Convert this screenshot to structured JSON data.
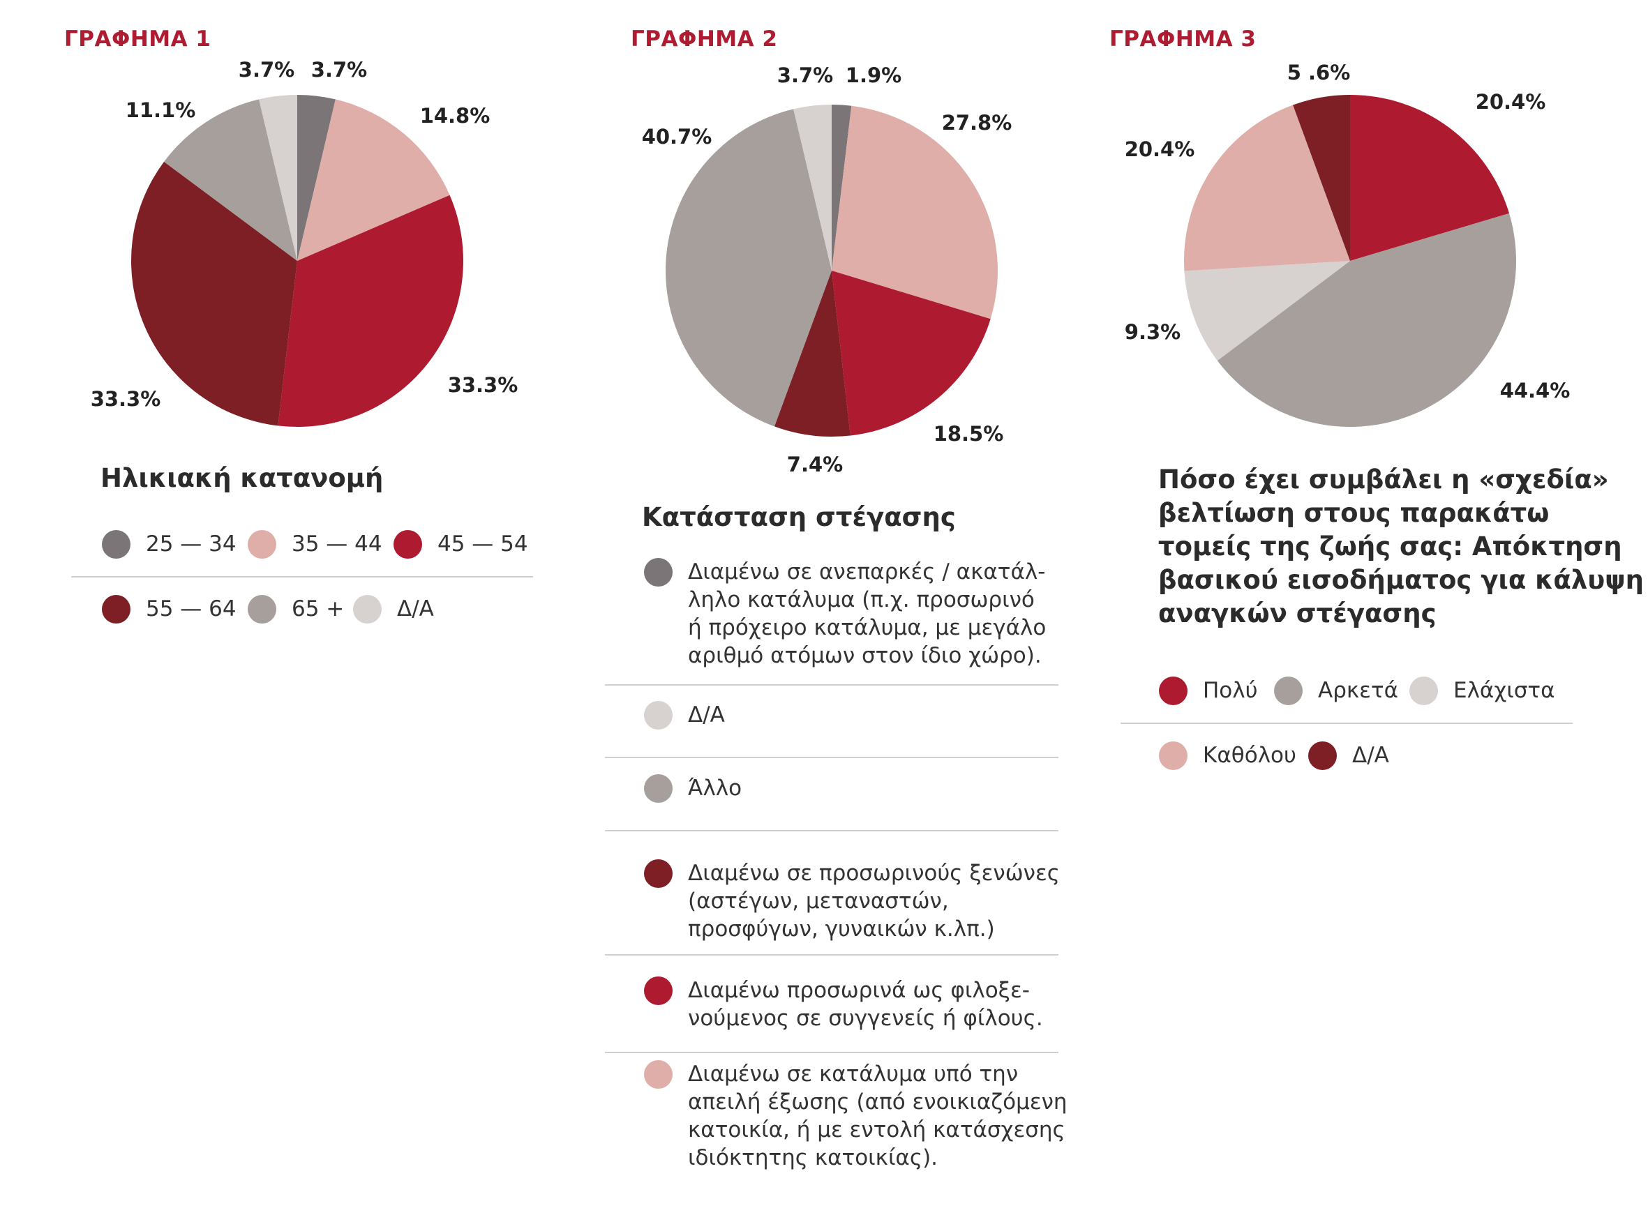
{
  "colors": {
    "dark_grey": "#7b7577",
    "pale_pink": "#e0aea8",
    "red": "#ae1a30",
    "dark_red": "#7e1f25",
    "warm_grey": "#a69f9b",
    "light_grey": "#d7d1d0",
    "label_red": "#ae1c31"
  },
  "chart_data": [
    {
      "type": "pie",
      "figure_label": "ΓΡΑΦΗΜΑ 1",
      "title": "Ηλικιακή κατανομή",
      "slices": [
        {
          "label": "25 — 34",
          "value": 3.7,
          "value_label": "3.7%",
          "color": "#7b7577"
        },
        {
          "label": "35 — 44",
          "value": 14.8,
          "value_label": "14.8%",
          "color": "#e0aea8"
        },
        {
          "label": "45 — 54",
          "value": 33.3,
          "value_label": "33.3%",
          "color": "#ae1a30"
        },
        {
          "label": "55 — 64",
          "value": 33.3,
          "value_label": "33.3%",
          "color": "#7e1f25"
        },
        {
          "label": "65 +",
          "value": 11.1,
          "value_label": "11.1%",
          "color": "#a69f9b"
        },
        {
          "label": "Δ/Α",
          "value": 3.7,
          "value_label": "3.7%",
          "color": "#d7d1d0"
        }
      ]
    },
    {
      "type": "pie",
      "figure_label": "ΓΡΑΦΗΜΑ 2",
      "title": "Κατάσταση στέγασης",
      "slices": [
        {
          "label": "Διαμένω σε ανεπαρκές / ακατάλληλο κατάλυμα (π.χ. προσωρινό ή πρόχειρο κατάλυμα, με μεγάλο αριθμό ατόμων στον ίδιο χώρο).",
          "value": 1.9,
          "value_label": "1.9%",
          "color": "#7b7577"
        },
        {
          "label": "Διαμένω σε κατάλυμα υπό την απειλή έξωσης (από ενοικιαζόμενη κατοικία, ή με εντολή κατάσχεσης ιδιόκτητης κατοικίας).",
          "value": 27.8,
          "value_label": "27.8%",
          "color": "#e0aea8"
        },
        {
          "label": "Διαμένω προσωρινά ως φιλοξενούμενος σε συγγενείς ή φίλους.",
          "value": 18.5,
          "value_label": "18.5%",
          "color": "#ae1a30"
        },
        {
          "label": "Διαμένω σε προσωρινούς ξενώνες (αστέγων, μεταναστών, προσφύγων, γυναικών κ.λπ.)",
          "value": 7.4,
          "value_label": "7.4%",
          "color": "#7e1f25"
        },
        {
          "label": "Άλλο",
          "value": 40.7,
          "value_label": "40.7%",
          "color": "#a69f9b"
        },
        {
          "label": "Δ/Α",
          "value": 3.7,
          "value_label": "3.7%",
          "color": "#d7d1d0"
        }
      ],
      "legend": [
        {
          "lines": [
            "Διαμένω σε ανεπαρκές / ακατάλ-",
            "ληλο κατάλυμα (π.χ. προσωρινό",
            "ή πρόχειρο κατάλυμα, με μεγάλο",
            "αριθμό ατόμων στον ίδιο χώρο)."
          ],
          "color": "#7b7577"
        },
        {
          "lines": [
            "Δ/Α"
          ],
          "color": "#d7d1d0"
        },
        {
          "lines": [
            "Άλλο"
          ],
          "color": "#a69f9b"
        },
        {
          "lines": [
            "Διαμένω σε προσωρινούς ξενώνες",
            "(αστέγων, μεταναστών,",
            "προσφύγων, γυναικών κ.λπ.)"
          ],
          "color": "#7e1f25"
        },
        {
          "lines": [
            "Διαμένω προσωρινά ως φιλοξε-",
            "νούμενος σε συγγενείς ή φίλους."
          ],
          "color": "#ae1a30"
        },
        {
          "lines": [
            "Διαμένω σε κατάλυμα υπό την",
            "απειλή έξωσης (από ενοικιαζόμενη",
            "κατοικία, ή με εντολή κατάσχεσης",
            "ιδιόκτητης κατοικίας)."
          ],
          "color": "#e0aea8"
        }
      ]
    },
    {
      "type": "pie",
      "figure_label": "ΓΡΑΦΗΜΑ 3",
      "title_lines": [
        "Πόσο έχει συμβάλει η «σχεδία»",
        "βελτίωση στους παρακάτω",
        "τομείς της ζωής σας: Απόκτηση",
        "βασικού εισοδήματος για κάλυψη",
        "αναγκών στέγασης"
      ],
      "slices": [
        {
          "label": "Πολύ",
          "value": 20.4,
          "value_label": "20.4%",
          "color": "#ae1a30"
        },
        {
          "label": "Αρκετά",
          "value": 44.4,
          "value_label": "44.4%",
          "color": "#a69f9b"
        },
        {
          "label": "Ελάχιστα",
          "value": 9.3,
          "value_label": "9.3%",
          "color": "#d7d1d0"
        },
        {
          "label": "Καθόλου",
          "value": 20.4,
          "value_label": "20.4%",
          "color": "#e0aea8"
        },
        {
          "label": "Δ/Α",
          "value": 5.6,
          "value_label": "5 .6%",
          "color": "#7e1f25"
        }
      ]
    }
  ]
}
